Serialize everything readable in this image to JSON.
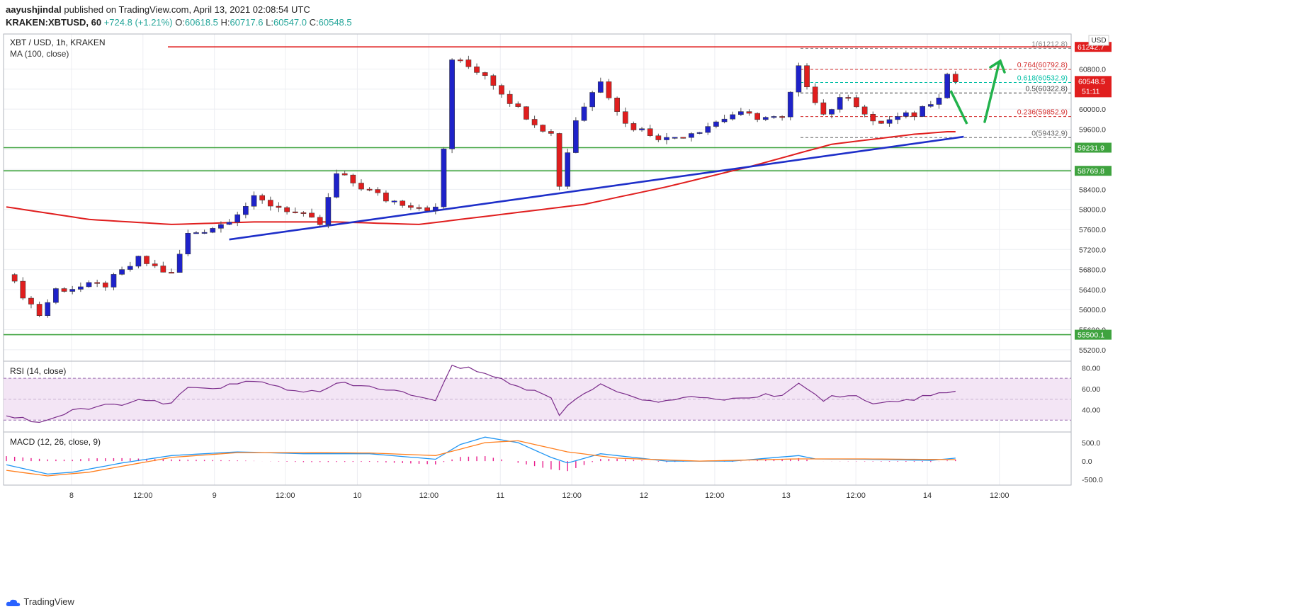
{
  "header": {
    "author": "aayushjindal",
    "published_text": "published on TradingView.com, April 13, 2021 02:08:54 UTC",
    "symbol_line": "KRAKEN:XBTUSD, 60",
    "change": "+724.8 (+1.21%)",
    "o_label": "O:",
    "o": "60618.5",
    "h_label": "H:",
    "h": "60717.6",
    "l_label": "L:",
    "l": "60547.0",
    "c_label": "C:",
    "c": "60548.5",
    "last": "60548.5"
  },
  "colors": {
    "up": "#26a69a",
    "down": "#ef5350",
    "bull_body": "#1e22c9",
    "bear_body": "#e01e1e",
    "ma": "#e01e1e",
    "trend": "#1e2fc9",
    "support": "#3fa33f",
    "resistance": "#e01e1e",
    "rsi": "#7b2d8b",
    "macd": "#2196f3",
    "signal": "#ff7f1e",
    "hist": "#e91e8c",
    "arrow": "#22b24c"
  },
  "main_legend": {
    "title": "XBT / USD, 1h, KRAKEN",
    "ma": "MA (100, close)"
  },
  "currency": "USD",
  "countdown": "51:11",
  "chart_data": {
    "type": "candlestick",
    "ylim": [
      55000,
      61500
    ],
    "y_ticks": [
      55200,
      55600,
      56000,
      56400,
      56800,
      57200,
      57600,
      58000,
      58400,
      58800,
      59200,
      59600,
      60000,
      60400,
      60800
    ],
    "x_labels": [
      "8",
      "12:00",
      "9",
      "12:00",
      "10",
      "12:00",
      "11",
      "12:00",
      "12",
      "12:00",
      "13",
      "12:00",
      "14",
      "12:00"
    ],
    "hlines": [
      {
        "name": "resistance",
        "value": 61242.7,
        "label": "61242.7"
      },
      {
        "name": "support-1",
        "value": 59231.9,
        "label": "59231.9"
      },
      {
        "name": "support-2",
        "value": 58769.8,
        "label": "58769.8"
      },
      {
        "name": "support-3",
        "value": 55500.1,
        "label": "55500.1"
      }
    ],
    "fib": [
      {
        "ratio": "1",
        "value": 61212.8,
        "label": "1(61212.8)"
      },
      {
        "ratio": "0.764",
        "value": 60792.8,
        "label": "0.764(60792.8)"
      },
      {
        "ratio": "0.618",
        "value": 60532.9,
        "label": "0.618(60532.9)"
      },
      {
        "ratio": "0.5",
        "value": 60322.8,
        "label": "0.5(60322.8)"
      },
      {
        "ratio": "0.236",
        "value": 59852.9,
        "label": "0.236(59852.9)"
      },
      {
        "ratio": "0",
        "value": 59432.9,
        "label": "0(59432.9)"
      }
    ],
    "trendline": [
      [
        27,
        57400
      ],
      [
        116,
        59450
      ]
    ],
    "anchors": [
      [
        0,
        56700
      ],
      [
        4,
        55900
      ],
      [
        6,
        56400
      ],
      [
        12,
        56500
      ],
      [
        16,
        57000
      ],
      [
        20,
        56700
      ],
      [
        22,
        57500
      ],
      [
        26,
        57700
      ],
      [
        30,
        58200
      ],
      [
        34,
        58000
      ],
      [
        38,
        57700
      ],
      [
        40,
        58700
      ],
      [
        46,
        58200
      ],
      [
        52,
        58000
      ],
      [
        53,
        59200
      ],
      [
        54,
        61000
      ],
      [
        58,
        60700
      ],
      [
        62,
        60000
      ],
      [
        66,
        59500
      ],
      [
        67,
        58500
      ],
      [
        69,
        59800
      ],
      [
        72,
        60600
      ],
      [
        75,
        59700
      ],
      [
        80,
        59400
      ],
      [
        84,
        59600
      ],
      [
        88,
        59900
      ],
      [
        94,
        59800
      ],
      [
        96,
        60800
      ],
      [
        99,
        59900
      ],
      [
        102,
        60300
      ],
      [
        105,
        59700
      ],
      [
        110,
        59900
      ],
      [
        113,
        60300
      ],
      [
        114,
        60700
      ],
      [
        115,
        60550
      ]
    ],
    "ma_points": [
      [
        0,
        58050
      ],
      [
        10,
        57800
      ],
      [
        20,
        57700
      ],
      [
        30,
        57750
      ],
      [
        40,
        57750
      ],
      [
        50,
        57700
      ],
      [
        55,
        57800
      ],
      [
        65,
        58000
      ],
      [
        70,
        58100
      ],
      [
        80,
        58450
      ],
      [
        90,
        58850
      ],
      [
        100,
        59300
      ],
      [
        110,
        59500
      ],
      [
        114,
        59550
      ]
    ],
    "rsi": {
      "name": "RSI (14, close)",
      "ylim": [
        20,
        85
      ],
      "ticks": [
        40,
        60,
        80
      ],
      "bands": [
        30,
        70
      ],
      "values": [
        [
          0,
          35
        ],
        [
          4,
          28
        ],
        [
          8,
          38
        ],
        [
          12,
          44
        ],
        [
          16,
          48
        ],
        [
          20,
          46
        ],
        [
          22,
          60
        ],
        [
          26,
          62
        ],
        [
          30,
          67
        ],
        [
          34,
          60
        ],
        [
          38,
          56
        ],
        [
          40,
          65
        ],
        [
          46,
          60
        ],
        [
          52,
          48
        ],
        [
          53,
          65
        ],
        [
          54,
          82
        ],
        [
          58,
          76
        ],
        [
          62,
          62
        ],
        [
          66,
          52
        ],
        [
          67,
          36
        ],
        [
          69,
          50
        ],
        [
          72,
          66
        ],
        [
          75,
          53
        ],
        [
          80,
          48
        ],
        [
          84,
          52
        ],
        [
          88,
          50
        ],
        [
          94,
          55
        ],
        [
          96,
          65
        ],
        [
          99,
          50
        ],
        [
          102,
          55
        ],
        [
          105,
          47
        ],
        [
          110,
          50
        ],
        [
          113,
          57
        ],
        [
          115,
          58
        ]
      ]
    },
    "macd": {
      "name": "MACD (12, 26, close, 9)",
      "ylim": [
        -650,
        750
      ],
      "ticks": [
        500,
        0,
        -500
      ],
      "macd_values": [
        [
          0,
          -100
        ],
        [
          5,
          -350
        ],
        [
          8,
          -300
        ],
        [
          14,
          -50
        ],
        [
          20,
          150
        ],
        [
          28,
          250
        ],
        [
          36,
          200
        ],
        [
          44,
          200
        ],
        [
          52,
          50
        ],
        [
          55,
          450
        ],
        [
          58,
          650
        ],
        [
          62,
          500
        ],
        [
          66,
          100
        ],
        [
          68,
          -50
        ],
        [
          72,
          200
        ],
        [
          80,
          0
        ],
        [
          88,
          0
        ],
        [
          96,
          150
        ],
        [
          98,
          60
        ],
        [
          104,
          50
        ],
        [
          112,
          20
        ],
        [
          115,
          80
        ]
      ],
      "signal_values": [
        [
          0,
          -250
        ],
        [
          5,
          -400
        ],
        [
          10,
          -300
        ],
        [
          20,
          100
        ],
        [
          28,
          230
        ],
        [
          36,
          230
        ],
        [
          44,
          220
        ],
        [
          52,
          150
        ],
        [
          58,
          500
        ],
        [
          62,
          550
        ],
        [
          68,
          250
        ],
        [
          74,
          80
        ],
        [
          84,
          0
        ],
        [
          96,
          60
        ],
        [
          104,
          60
        ],
        [
          115,
          40
        ]
      ]
    }
  },
  "footer": {
    "brand": "TradingView"
  }
}
